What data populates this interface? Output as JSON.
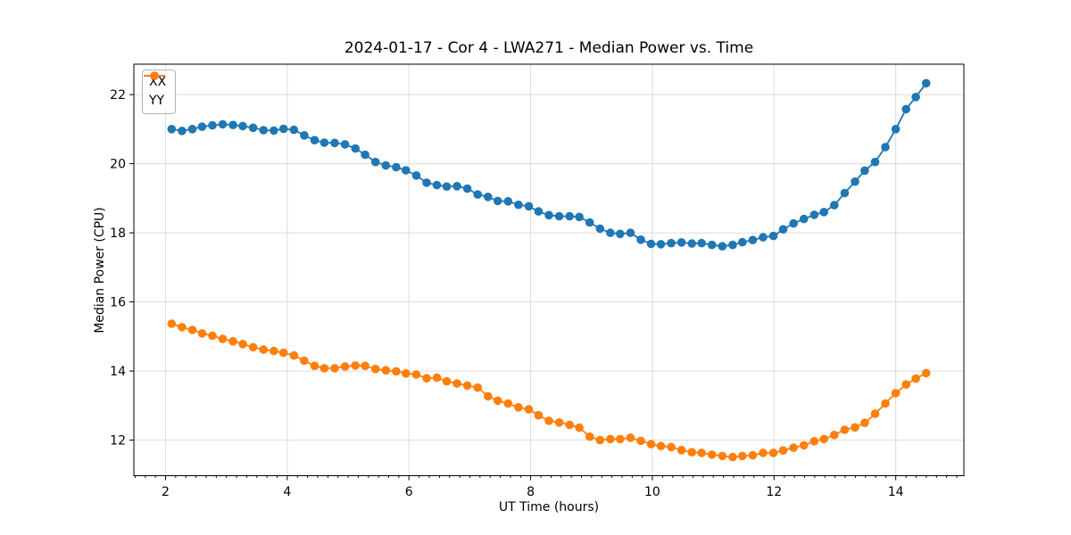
{
  "chart_data": {
    "type": "line",
    "title": "2024-01-17 - Cor 4 - LWA271 - Median Power vs. Time",
    "xlabel": "UT Time (hours)",
    "ylabel": "Median Power (CPU)",
    "xlim": [
      1.48,
      15.12
    ],
    "ylim": [
      10.97,
      22.88
    ],
    "xticks": [
      2,
      4,
      6,
      8,
      10,
      12,
      14
    ],
    "yticks": [
      12,
      14,
      16,
      18,
      20,
      22
    ],
    "minor_xtick_step": 0.1667,
    "grid": true,
    "grid_color": "#dcdcdc",
    "legend_position": "upper left",
    "marker": "circle",
    "x": [
      2.1,
      2.27,
      2.44,
      2.6,
      2.77,
      2.94,
      3.11,
      3.27,
      3.44,
      3.61,
      3.78,
      3.94,
      4.11,
      4.28,
      4.45,
      4.61,
      4.78,
      4.95,
      5.12,
      5.28,
      5.45,
      5.62,
      5.79,
      5.95,
      6.12,
      6.29,
      6.46,
      6.62,
      6.79,
      6.96,
      7.13,
      7.3,
      7.46,
      7.63,
      7.8,
      7.97,
      8.13,
      8.3,
      8.47,
      8.64,
      8.8,
      8.97,
      9.14,
      9.31,
      9.47,
      9.64,
      9.81,
      9.98,
      10.14,
      10.31,
      10.48,
      10.65,
      10.81,
      10.98,
      11.15,
      11.32,
      11.48,
      11.65,
      11.82,
      11.99,
      12.15,
      12.32,
      12.49,
      12.66,
      12.82,
      12.99,
      13.16,
      13.33,
      13.49,
      13.66,
      13.83,
      14.0,
      14.17,
      14.33,
      14.5
    ],
    "series": [
      {
        "name": "XX",
        "color": "#1f77b4",
        "values": [
          21.0,
          20.95,
          21.0,
          21.07,
          21.11,
          21.14,
          21.12,
          21.09,
          21.04,
          20.97,
          20.96,
          21.01,
          20.98,
          20.82,
          20.68,
          20.61,
          20.6,
          20.56,
          20.44,
          20.26,
          20.05,
          19.95,
          19.9,
          19.81,
          19.66,
          19.45,
          19.38,
          19.34,
          19.35,
          19.28,
          19.11,
          19.04,
          18.92,
          18.91,
          18.81,
          18.77,
          18.62,
          18.51,
          18.48,
          18.48,
          18.46,
          18.3,
          18.12,
          18.0,
          17.97,
          18.0,
          17.8,
          17.68,
          17.67,
          17.7,
          17.72,
          17.69,
          17.7,
          17.65,
          17.61,
          17.65,
          17.73,
          17.79,
          17.87,
          17.91,
          18.1,
          18.27,
          18.4,
          18.52,
          18.6,
          18.8,
          19.15,
          19.48,
          19.8,
          20.05,
          20.48,
          21.0,
          21.58,
          21.93,
          22.33
        ]
      },
      {
        "name": "YY",
        "color": "#ff7f0e",
        "values": [
          15.37,
          15.27,
          15.19,
          15.09,
          15.02,
          14.93,
          14.86,
          14.78,
          14.69,
          14.62,
          14.58,
          14.53,
          14.45,
          14.3,
          14.15,
          14.08,
          14.08,
          14.13,
          14.16,
          14.15,
          14.06,
          14.02,
          13.99,
          13.93,
          13.9,
          13.79,
          13.81,
          13.7,
          13.64,
          13.58,
          13.52,
          13.27,
          13.14,
          13.06,
          12.95,
          12.89,
          12.72,
          12.56,
          12.51,
          12.44,
          12.36,
          12.1,
          12.0,
          12.03,
          12.03,
          12.07,
          11.98,
          11.88,
          11.83,
          11.8,
          11.71,
          11.65,
          11.63,
          11.58,
          11.54,
          11.51,
          11.54,
          11.56,
          11.63,
          11.63,
          11.7,
          11.78,
          11.85,
          11.97,
          12.03,
          12.15,
          12.3,
          12.37,
          12.5,
          12.76,
          13.06,
          13.36,
          13.61,
          13.78,
          13.94
        ]
      }
    ]
  }
}
